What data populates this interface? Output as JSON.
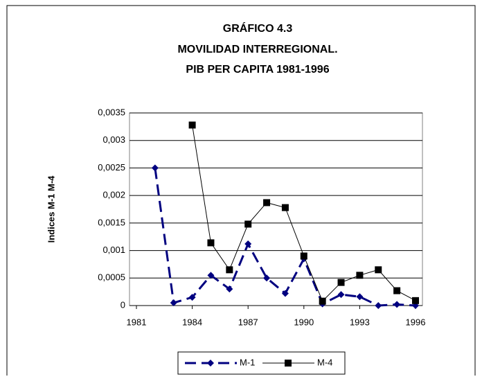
{
  "chart_data": {
    "type": "line",
    "title": [
      "GRÁFICO 4.3",
      "MOVILIDAD INTERREGIONAL.",
      "PIB PER CAPITA 1981-1996"
    ],
    "y_label": "Indices M-1 M-4",
    "x": [
      1981,
      1982,
      1983,
      1984,
      1985,
      1986,
      1987,
      1988,
      1989,
      1990,
      1991,
      1992,
      1993,
      1994,
      1995,
      1996
    ],
    "series": [
      {
        "name": "M-1",
        "color": "#000080",
        "dashed": true,
        "marker": "diamond",
        "values": [
          null,
          0.0025,
          5e-05,
          0.00015,
          0.00055,
          0.0003,
          0.00112,
          0.0005,
          0.00022,
          0.00085,
          3e-05,
          0.0002,
          0.00016,
          0,
          2e-05,
          0
        ]
      },
      {
        "name": "M-4",
        "color": "#000000",
        "dashed": false,
        "marker": "square",
        "values": [
          null,
          null,
          null,
          0.00328,
          0.00114,
          0.00065,
          0.00148,
          0.00187,
          0.00178,
          0.0009,
          8e-05,
          0.00042,
          0.00055,
          0.00065,
          0.00027,
          9e-05
        ]
      }
    ],
    "xlim": [
      1981,
      1996
    ],
    "xticks": [
      1981,
      1984,
      1987,
      1990,
      1993,
      1996
    ],
    "ylim": [
      0,
      0.0035
    ],
    "yticks": [
      0,
      {
        "value": 0.0005,
        "label": "0,0005"
      },
      {
        "value": 0.001,
        "label": "0,001"
      },
      {
        "value": 0.0015,
        "label": "0,0015"
      },
      {
        "value": 0.002,
        "label": "0,002"
      },
      {
        "value": 0.0025,
        "label": "0,0025"
      },
      {
        "value": 0.003,
        "label": "0,003"
      },
      {
        "value": 0.0035,
        "label": "0,0035"
      }
    ],
    "grid": true,
    "legend": "bottom"
  }
}
